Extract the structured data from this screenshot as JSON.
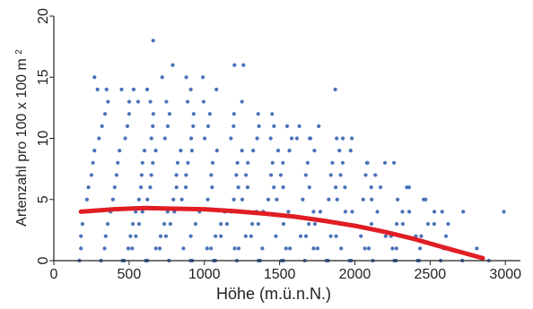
{
  "chart_data": {
    "type": "scatter",
    "title": "",
    "xlabel": "Höhe (m.ü.n.N.)",
    "ylabel_main": "Artenzahl pro 100 x 100 m",
    "ylabel_sup": "2",
    "xlim": [
      0,
      3100
    ],
    "ylim": [
      0,
      20
    ],
    "xticks": [
      0,
      500,
      1000,
      1500,
      2000,
      2500,
      3000
    ],
    "yticks": [
      0,
      5,
      10,
      15,
      20
    ],
    "point_color": "#4a72b8",
    "trend_color": "#e01e24",
    "series": [
      {
        "type": "scatter",
        "points": [
          {
            "x": 270,
            "y": 15
          },
          {
            "x": 290,
            "y": 14
          },
          {
            "x": 350,
            "y": 14
          },
          {
            "x": 450,
            "y": 14
          },
          {
            "x": 530,
            "y": 14
          },
          {
            "x": 560,
            "y": 13
          },
          {
            "x": 620,
            "y": 14
          },
          {
            "x": 660,
            "y": 18
          },
          {
            "x": 720,
            "y": 15
          },
          {
            "x": 790,
            "y": 16
          },
          {
            "x": 880,
            "y": 15
          },
          {
            "x": 910,
            "y": 14
          },
          {
            "x": 990,
            "y": 15
          },
          {
            "x": 1080,
            "y": 14
          },
          {
            "x": 1200,
            "y": 16
          },
          {
            "x": 1260,
            "y": 16
          },
          {
            "x": 1250,
            "y": 13
          },
          {
            "x": 1450,
            "y": 12
          },
          {
            "x": 1550,
            "y": 11
          },
          {
            "x": 1580,
            "y": 10
          },
          {
            "x": 1700,
            "y": 10
          },
          {
            "x": 1760,
            "y": 11
          },
          {
            "x": 1870,
            "y": 14
          },
          {
            "x": 1920,
            "y": 10
          },
          {
            "x": 1980,
            "y": 10
          },
          {
            "x": 2080,
            "y": 8
          },
          {
            "x": 2200,
            "y": 8
          },
          {
            "x": 2260,
            "y": 8
          },
          {
            "x": 2360,
            "y": 6
          },
          {
            "x": 2470,
            "y": 5
          },
          {
            "x": 2580,
            "y": 4
          },
          {
            "x": 2620,
            "y": 3
          },
          {
            "x": 2720,
            "y": 4
          },
          {
            "x": 2810,
            "y": 1
          },
          {
            "x": 2890,
            "y": 0
          },
          {
            "x": 2990,
            "y": 4
          }
        ]
      },
      {
        "type": "line",
        "points": [
          {
            "x": 180,
            "y": 4.0
          },
          {
            "x": 400,
            "y": 4.2
          },
          {
            "x": 600,
            "y": 4.3
          },
          {
            "x": 800,
            "y": 4.25
          },
          {
            "x": 1000,
            "y": 4.2
          },
          {
            "x": 1200,
            "y": 4.05
          },
          {
            "x": 1400,
            "y": 3.85
          },
          {
            "x": 1600,
            "y": 3.6
          },
          {
            "x": 1800,
            "y": 3.25
          },
          {
            "x": 2000,
            "y": 2.85
          },
          {
            "x": 2200,
            "y": 2.35
          },
          {
            "x": 2400,
            "y": 1.75
          },
          {
            "x": 2600,
            "y": 1.05
          },
          {
            "x": 2850,
            "y": 0.2
          }
        ]
      }
    ]
  }
}
